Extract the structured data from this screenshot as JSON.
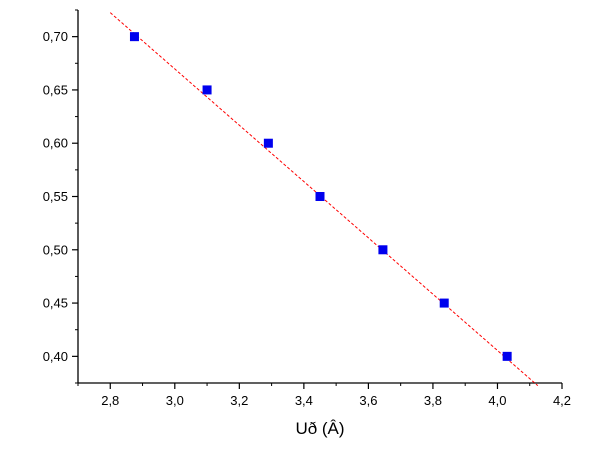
{
  "chart_data": {
    "type": "scatter",
    "title": "",
    "xlabel": "Uð (Â)",
    "ylabel": "",
    "xlim": [
      2.7,
      4.2
    ],
    "ylim": [
      0.375,
      0.725
    ],
    "x_ticks": [
      "2,8",
      "3,0",
      "3,2",
      "3,4",
      "3,6",
      "3,8",
      "4,0",
      "4,2"
    ],
    "x_tick_values": [
      2.8,
      3.0,
      3.2,
      3.4,
      3.6,
      3.8,
      4.0,
      4.2
    ],
    "y_ticks": [
      "0,40",
      "0,45",
      "0,50",
      "0,55",
      "0,60",
      "0,65",
      "0,70"
    ],
    "y_tick_values": [
      0.4,
      0.45,
      0.5,
      0.55,
      0.6,
      0.65,
      0.7
    ],
    "grid": false,
    "legend": false,
    "series": [
      {
        "points": [
          {
            "x": 2.875,
            "y": 0.7
          },
          {
            "x": 3.1,
            "y": 0.65
          },
          {
            "x": 3.29,
            "y": 0.6
          },
          {
            "x": 3.45,
            "y": 0.55
          },
          {
            "x": 3.645,
            "y": 0.5
          },
          {
            "x": 3.835,
            "y": 0.45
          },
          {
            "x": 4.03,
            "y": 0.4
          }
        ],
        "marker": "square",
        "color": "#0000ee"
      }
    ],
    "fit_line": {
      "x": [
        2.8,
        4.125
      ],
      "y": [
        0.7225,
        0.3725
      ],
      "color": "#ff0000",
      "style": "dashed"
    }
  }
}
